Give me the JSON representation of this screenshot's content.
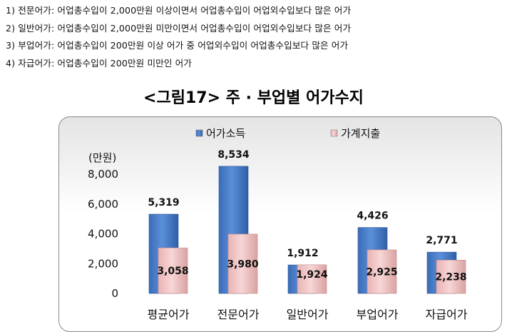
{
  "notes": [
    "1) 전문어가: 어업총수입이 2,000만원 이상이면서 어업총수입이 어업외수입보다 많은 어가",
    "2) 일반어가: 어업총수입이 2,000만원 미만이면서 어업총수입이 어업외수입보다 많은 어가",
    "3) 부업어가: 어업총수입이 200만원 이상 어가 중 어업외수입이 어업총수입보다 많은 어가",
    "4) 자급어가: 어업총수입이 200만원 미만인 어가"
  ],
  "colors": {
    "income": "#4a7ec9",
    "income_dark": "#2f5fa8",
    "expense": "#f2c4c4",
    "expense_dark": "#d99a9a"
  },
  "chart_data": {
    "type": "bar",
    "title": "<그림17> 주 · 부업별 어가수지",
    "ylabel": "(만원)",
    "ylim": [
      0,
      8000
    ],
    "yticks": [
      0,
      2000,
      4000,
      6000,
      8000
    ],
    "ytick_labels": [
      "0",
      "2,000",
      "4,000",
      "6,000",
      "8,000"
    ],
    "categories": [
      "평균어가",
      "전문어가",
      "일반어가",
      "부업어가",
      "자급어가"
    ],
    "legend_position": "top",
    "series": [
      {
        "name": "어가소득",
        "values": [
          5319,
          8534,
          1912,
          4426,
          2771
        ],
        "labels": [
          "5,319",
          "8,534",
          "1,912",
          "4,426",
          "2,771"
        ]
      },
      {
        "name": "가계지출",
        "values": [
          3058,
          3980,
          1924,
          2925,
          2238
        ],
        "labels": [
          "3,058",
          "3,980",
          "1,924",
          "2,925",
          "2,238"
        ]
      }
    ]
  }
}
